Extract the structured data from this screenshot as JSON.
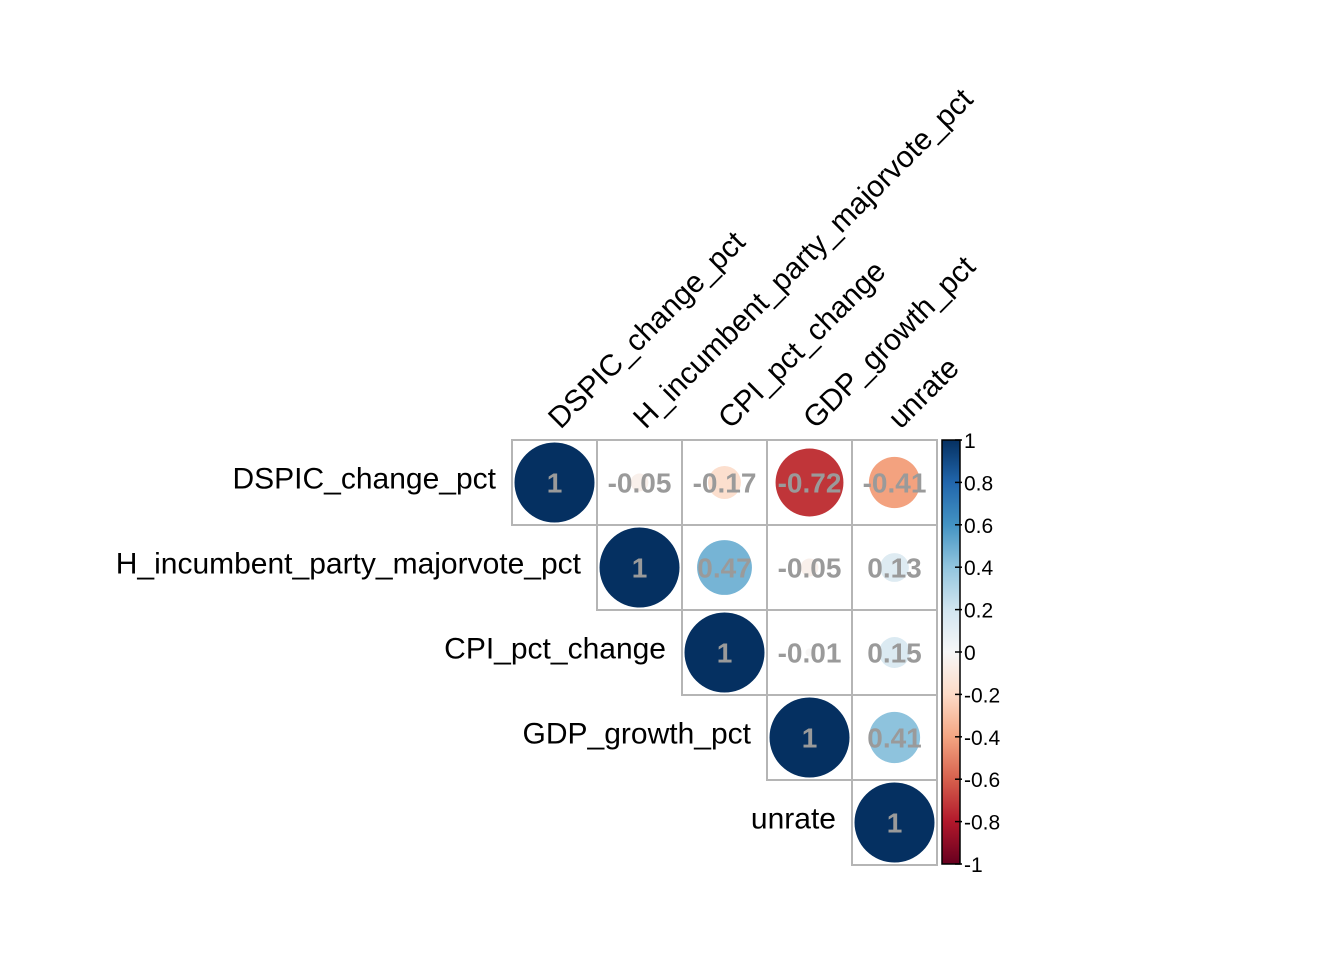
{
  "chart_data": {
    "type": "heatmap",
    "variables": [
      "DSPIC_change_pct",
      "H_incumbent_party_majorvote_pct",
      "CPI_pct_change",
      "GDP_growth_pct",
      "unrate"
    ],
    "matrix": [
      [
        1,
        -0.05,
        -0.17,
        -0.72,
        -0.41
      ],
      [
        -0.05,
        1,
        0.47,
        -0.05,
        0.13
      ],
      [
        -0.17,
        0.47,
        1,
        -0.01,
        0.15
      ],
      [
        -0.72,
        -0.05,
        -0.01,
        1,
        0.41
      ],
      [
        -0.41,
        0.13,
        0.15,
        0.41,
        1
      ]
    ],
    "display_labels": [
      [
        "1",
        "-0.05",
        "-0.17",
        "-0.72",
        "-0.41"
      ],
      [
        "",
        "1",
        "0.47",
        "-0.05",
        "0.13"
      ],
      [
        "",
        "",
        "1",
        "-0.01",
        "0.15"
      ],
      [
        "",
        "",
        "",
        "1",
        "0.41"
      ],
      [
        "",
        "",
        "",
        "",
        "1"
      ]
    ],
    "layout": "upper-triangle",
    "method": "circle",
    "colorbar": {
      "range": [
        -1,
        1
      ],
      "ticks": [
        1,
        0.8,
        0.6,
        0.4,
        0.2,
        0,
        -0.2,
        -0.4,
        -0.6,
        -0.8,
        -1
      ],
      "tick_labels": [
        "1",
        "0.8",
        "0.6",
        "0.4",
        "0.2",
        "0",
        "-0.2",
        "-0.4",
        "-0.6",
        "-0.8",
        "-1"
      ],
      "placement": "right"
    },
    "colors": {
      "negative_strong": "#67001F",
      "neutral": "#F7F7F7",
      "positive_strong": "#053061",
      "value_text": "#9a9a9a",
      "grid": "#b5b5b5"
    }
  }
}
